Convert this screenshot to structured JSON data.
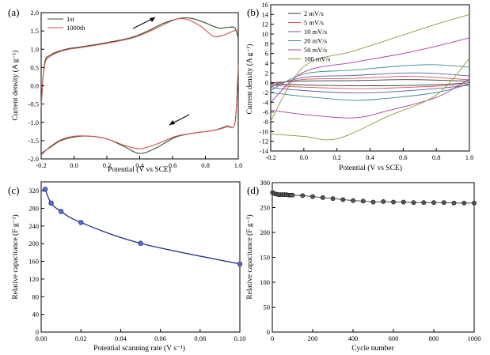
{
  "chart_data": [
    {
      "panel": "(a)",
      "type": "line",
      "xlabel": "Potential (V vs SCE)",
      "ylabel": "Current density (A g⁻¹)",
      "xlim": [
        -0.2,
        1.0
      ],
      "ylim": [
        -2.0,
        2.0
      ],
      "xticks": [
        "-0.2",
        "0.0",
        "0.2",
        "0.4",
        "0.6",
        "0.8",
        "1.0"
      ],
      "yticks": [
        "2.0",
        "1.5",
        "1.0",
        "0.5",
        "0.0",
        "-0.5",
        "-1.0",
        "-1.5",
        "-2.0"
      ],
      "legend_position": "top-left",
      "series": [
        {
          "name": "1st",
          "color": "#2f4f2f",
          "anodic": [
            [
              -0.2,
              -0.6
            ],
            [
              -0.18,
              0.6
            ],
            [
              -0.14,
              0.85
            ],
            [
              -0.05,
              1.0
            ],
            [
              0.05,
              1.07
            ],
            [
              0.2,
              1.18
            ],
            [
              0.35,
              1.32
            ],
            [
              0.45,
              1.5
            ],
            [
              0.55,
              1.72
            ],
            [
              0.65,
              1.85
            ],
            [
              0.72,
              1.84
            ],
            [
              0.8,
              1.72
            ],
            [
              0.88,
              1.58
            ],
            [
              0.94,
              1.6
            ],
            [
              0.98,
              1.58
            ],
            [
              1.0,
              1.3
            ]
          ],
          "cathodic": [
            [
              1.0,
              0.6
            ],
            [
              0.98,
              -1.0
            ],
            [
              0.93,
              -1.1
            ],
            [
              0.85,
              -1.22
            ],
            [
              0.75,
              -1.28
            ],
            [
              0.62,
              -1.4
            ],
            [
              0.5,
              -1.7
            ],
            [
              0.4,
              -1.85
            ],
            [
              0.3,
              -1.65
            ],
            [
              0.2,
              -1.45
            ],
            [
              0.1,
              -1.38
            ],
            [
              0.0,
              -1.4
            ],
            [
              -0.08,
              -1.5
            ],
            [
              -0.15,
              -1.7
            ],
            [
              -0.2,
              -1.85
            ]
          ]
        },
        {
          "name": "1000th",
          "color": "#d9534f",
          "anodic": [
            [
              -0.2,
              -0.55
            ],
            [
              -0.18,
              0.55
            ],
            [
              -0.14,
              0.82
            ],
            [
              -0.05,
              0.98
            ],
            [
              0.05,
              1.05
            ],
            [
              0.2,
              1.16
            ],
            [
              0.35,
              1.3
            ],
            [
              0.45,
              1.47
            ],
            [
              0.55,
              1.68
            ],
            [
              0.63,
              1.83
            ],
            [
              0.7,
              1.8
            ],
            [
              0.78,
              1.6
            ],
            [
              0.85,
              1.35
            ],
            [
              0.92,
              1.4
            ],
            [
              0.97,
              1.5
            ],
            [
              1.0,
              1.5
            ]
          ],
          "cathodic": [
            [
              1.0,
              0.55
            ],
            [
              0.98,
              -1.0
            ],
            [
              0.93,
              -1.12
            ],
            [
              0.85,
              -1.22
            ],
            [
              0.75,
              -1.28
            ],
            [
              0.62,
              -1.38
            ],
            [
              0.5,
              -1.6
            ],
            [
              0.4,
              -1.72
            ],
            [
              0.3,
              -1.62
            ],
            [
              0.2,
              -1.45
            ],
            [
              0.1,
              -1.38
            ],
            [
              0.0,
              -1.38
            ],
            [
              -0.08,
              -1.48
            ],
            [
              -0.15,
              -1.68
            ],
            [
              -0.2,
              -1.9
            ]
          ]
        }
      ],
      "annotations": [
        "arrow toward upper right above anodic peak",
        "arrow toward lower left near cathodic peak"
      ]
    },
    {
      "panel": "(b)",
      "type": "line",
      "xlabel": "Potential (V vs SCE)",
      "ylabel": "Current density (A g⁻¹)",
      "xlim": [
        -0.2,
        1.0
      ],
      "ylim": [
        -14,
        16
      ],
      "xticks": [
        "-0.2",
        "0.0",
        "0.2",
        "0.4",
        "0.6",
        "0.8",
        "1.0"
      ],
      "yticks": [
        "16",
        "14",
        "12",
        "10",
        "8",
        "6",
        "4",
        "2",
        "0",
        "-2",
        "-4",
        "-6",
        "-8",
        "-10",
        "-12",
        "-14"
      ],
      "legend_position": "top-left",
      "series": [
        {
          "name": "2 mV/s",
          "color": "#333333",
          "top": [
            [
              -0.2,
              0.0
            ],
            [
              0.0,
              0.35
            ],
            [
              0.3,
              0.45
            ],
            [
              0.6,
              0.65
            ],
            [
              0.8,
              0.55
            ],
            [
              1.0,
              0.3
            ]
          ],
          "bottom": [
            [
              1.0,
              0.0
            ],
            [
              0.8,
              -0.4
            ],
            [
              0.5,
              -0.6
            ],
            [
              0.3,
              -0.6
            ],
            [
              0.0,
              -0.45
            ],
            [
              -0.2,
              -0.2
            ]
          ]
        },
        {
          "name": "5 mV/s",
          "color": "#d9534f",
          "top": [
            [
              -0.2,
              -0.4
            ],
            [
              0.0,
              0.7
            ],
            [
              0.3,
              0.9
            ],
            [
              0.6,
              1.3
            ],
            [
              0.8,
              1.1
            ],
            [
              1.0,
              0.6
            ]
          ],
          "bottom": [
            [
              1.0,
              -0.3
            ],
            [
              0.8,
              -0.7
            ],
            [
              0.5,
              -1.1
            ],
            [
              0.3,
              -1.2
            ],
            [
              0.0,
              -0.9
            ],
            [
              -0.2,
              -0.5
            ]
          ]
        },
        {
          "name": "10 mV/s",
          "color": "#5b5bb5",
          "top": [
            [
              -0.2,
              -0.9
            ],
            [
              0.0,
              1.1
            ],
            [
              0.3,
              1.5
            ],
            [
              0.6,
              2.0
            ],
            [
              0.8,
              1.9
            ],
            [
              1.0,
              1.4
            ]
          ],
          "bottom": [
            [
              1.0,
              -0.5
            ],
            [
              0.8,
              -1.2
            ],
            [
              0.5,
              -1.9
            ],
            [
              0.3,
              -2.1
            ],
            [
              0.0,
              -1.6
            ],
            [
              -0.2,
              -1.0
            ]
          ]
        },
        {
          "name": "20 mV/s",
          "color": "#3a8a8a",
          "top": [
            [
              -0.2,
              -1.6
            ],
            [
              0.0,
              1.8
            ],
            [
              0.3,
              2.6
            ],
            [
              0.6,
              3.5
            ],
            [
              0.8,
              3.7
            ],
            [
              1.0,
              3.2
            ]
          ],
          "bottom": [
            [
              1.0,
              -0.3
            ],
            [
              0.8,
              -2.0
            ],
            [
              0.5,
              -3.2
            ],
            [
              0.3,
              -3.6
            ],
            [
              0.0,
              -2.8
            ],
            [
              -0.2,
              -2.0
            ]
          ]
        },
        {
          "name": "50 mV/s",
          "color": "#b03aa8",
          "top": [
            [
              -0.2,
              -4.0
            ],
            [
              0.0,
              2.2
            ],
            [
              0.3,
              4.2
            ],
            [
              0.6,
              6.0
            ],
            [
              0.8,
              7.5
            ],
            [
              1.0,
              9.2
            ]
          ],
          "bottom": [
            [
              1.0,
              0.8
            ],
            [
              0.8,
              -3.0
            ],
            [
              0.5,
              -5.8
            ],
            [
              0.3,
              -7.2
            ],
            [
              0.0,
              -6.5
            ],
            [
              -0.2,
              -5.6
            ]
          ]
        },
        {
          "name": "100 mV/s",
          "color": "#8f9a3a",
          "top": [
            [
              -0.2,
              -7.8
            ],
            [
              0.0,
              3.3
            ],
            [
              0.3,
              6.5
            ],
            [
              0.6,
              9.8
            ],
            [
              0.8,
              12.0
            ],
            [
              1.0,
              14.0
            ]
          ],
          "bottom": [
            [
              1.0,
              5.0
            ],
            [
              0.8,
              -2.5
            ],
            [
              0.5,
              -7.0
            ],
            [
              0.2,
              -11.5
            ],
            [
              0.0,
              -11.0
            ],
            [
              -0.2,
              -10.5
            ]
          ]
        }
      ]
    },
    {
      "panel": "(c)",
      "type": "scatter",
      "xlabel": "Potential scanning rate (V s⁻¹)",
      "ylabel": "Relative capacitance (F g⁻¹)",
      "xlim": [
        0.0,
        0.1
      ],
      "ylim": [
        0,
        340
      ],
      "xticks": [
        "0.00",
        "0.02",
        "0.04",
        "0.06",
        "0.08",
        "0.10"
      ],
      "yticks": [
        "320",
        "280",
        "240",
        "200",
        "160",
        "120",
        "80",
        "40",
        "0"
      ],
      "x": [
        0.002,
        0.005,
        0.01,
        0.02,
        0.05,
        0.1
      ],
      "y": [
        323,
        292,
        273,
        248,
        201,
        154
      ],
      "fit_line": true,
      "color": "#1f2a8c"
    },
    {
      "panel": "(d)",
      "type": "scatter",
      "xlabel": "Cycle number",
      "ylabel": "Relative capacitance (F g⁻¹)",
      "xlim": [
        0,
        1000
      ],
      "ylim": [
        0,
        300
      ],
      "xticks": [
        "0",
        "200",
        "400",
        "600",
        "800",
        "1000"
      ],
      "yticks": [
        "300",
        "250",
        "200",
        "150",
        "100",
        "50",
        "0"
      ],
      "x": [
        1,
        10,
        20,
        30,
        40,
        50,
        60,
        70,
        80,
        90,
        100,
        150,
        200,
        250,
        300,
        350,
        400,
        450,
        500,
        550,
        600,
        650,
        700,
        750,
        800,
        850,
        900,
        950,
        1000
      ],
      "y": [
        280,
        278,
        277,
        276,
        276,
        276,
        276,
        276,
        275,
        275,
        275,
        274,
        272,
        270,
        268,
        266,
        264,
        263,
        261,
        262,
        261,
        261,
        260,
        260,
        260,
        260,
        259,
        259,
        259
      ],
      "fit_line": true,
      "color": "#333333"
    }
  ]
}
